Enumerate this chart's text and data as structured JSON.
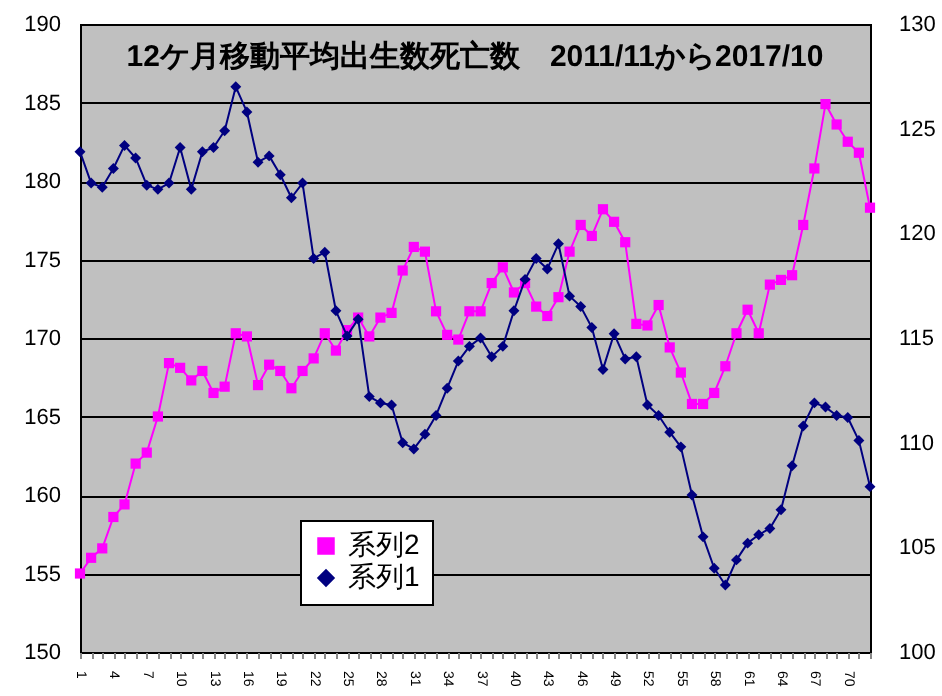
{
  "chart_data": {
    "type": "line",
    "title": "12ケ月移動平均出生数死亡数　2011/11から2017/10",
    "categories": [
      "1",
      null,
      null,
      "4",
      null,
      null,
      "7",
      null,
      null,
      "10",
      null,
      null,
      "13",
      null,
      null,
      "16",
      null,
      null,
      "19",
      null,
      null,
      "22",
      null,
      null,
      "25",
      null,
      null,
      "28",
      null,
      null,
      "31",
      null,
      null,
      "34",
      null,
      null,
      "37",
      null,
      null,
      "40",
      null,
      null,
      "43",
      null,
      null,
      "46",
      null,
      null,
      "49",
      null,
      null,
      "52",
      null,
      null,
      "55",
      null,
      null,
      "58",
      null,
      null,
      "61",
      null,
      null,
      "64",
      null,
      null,
      "67",
      null,
      null,
      "70",
      null,
      null
    ],
    "series": [
      {
        "name": "系列2",
        "color": "#ff00ff",
        "marker": "square",
        "values": [
          155.0,
          156.0,
          156.6,
          158.6,
          159.4,
          162.0,
          162.7,
          165.0,
          168.4,
          168.1,
          167.3,
          167.9,
          166.5,
          166.9,
          170.3,
          170.1,
          167.0,
          168.3,
          167.9,
          166.8,
          167.9,
          168.7,
          170.3,
          169.2,
          170.5,
          171.3,
          170.1,
          171.3,
          171.6,
          174.3,
          175.8,
          175.5,
          171.7,
          170.2,
          169.9,
          171.7,
          171.7,
          173.5,
          174.5,
          172.9,
          173.5,
          172.0,
          171.4,
          172.6,
          175.5,
          177.2,
          176.5,
          178.2,
          177.4,
          176.1,
          170.9,
          170.8,
          172.1,
          169.4,
          167.8,
          165.8,
          165.8,
          166.5,
          168.2,
          170.3,
          171.8,
          170.3,
          173.4,
          173.7,
          174.0,
          177.2,
          180.8,
          184.9,
          183.6,
          182.5,
          181.8,
          178.3
        ]
      },
      {
        "name": "系列1",
        "color": "#000080",
        "marker": "diamond",
        "axis": "y2",
        "values": [
          123.9,
          122.4,
          122.2,
          123.1,
          124.2,
          123.6,
          122.3,
          122.1,
          122.4,
          124.1,
          122.1,
          123.9,
          124.1,
          124.9,
          127.0,
          125.8,
          123.4,
          123.7,
          122.8,
          121.7,
          122.4,
          118.8,
          119.1,
          116.3,
          115.1,
          115.9,
          112.2,
          111.9,
          111.8,
          110.0,
          109.7,
          110.4,
          111.3,
          112.6,
          113.9,
          114.6,
          115.0,
          114.1,
          114.6,
          116.3,
          117.8,
          118.8,
          118.3,
          119.5,
          117.0,
          116.5,
          115.5,
          113.5,
          115.2,
          114.0,
          114.1,
          111.8,
          111.3,
          110.5,
          109.8,
          107.5,
          105.5,
          104.0,
          103.2,
          104.4,
          105.2,
          105.6,
          105.9,
          106.8,
          108.9,
          110.8,
          111.9,
          111.7,
          111.3,
          111.2,
          110.1,
          107.9
        ]
      }
    ],
    "ylim": [
      150,
      190
    ],
    "yticks": [
      150,
      155,
      160,
      165,
      170,
      175,
      180,
      185,
      190
    ],
    "y2lim": [
      100,
      130
    ],
    "y2ticks": [
      100,
      105,
      110,
      115,
      120,
      125,
      130
    ],
    "grid": "y",
    "legend": "bottom left",
    "line_style": "solid"
  }
}
